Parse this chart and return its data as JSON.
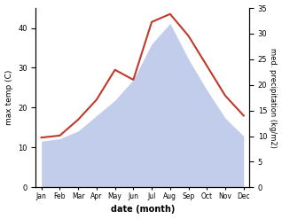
{
  "months": [
    "Jan",
    "Feb",
    "Mar",
    "Apr",
    "May",
    "Jun",
    "Jul",
    "Aug",
    "Sep",
    "Oct",
    "Nov",
    "Dec"
  ],
  "temp": [
    12.5,
    13.0,
    17.0,
    22.0,
    29.5,
    27.0,
    41.5,
    43.5,
    38.0,
    30.5,
    23.0,
    18.0
  ],
  "precip": [
    9.0,
    9.5,
    11.0,
    14.0,
    17.0,
    21.0,
    28.0,
    32.0,
    25.0,
    19.0,
    13.5,
    10.0
  ],
  "temp_color": "#c0392b",
  "precip_fill_color": "#b8c4e8",
  "ylabel_left": "max temp (C)",
  "ylabel_right": "med. precipitation (kg/m2)",
  "xlabel": "date (month)",
  "ylim_left": [
    0,
    45
  ],
  "ylim_right": [
    0,
    35
  ],
  "yticks_left": [
    0,
    10,
    20,
    30,
    40
  ],
  "yticks_right": [
    0,
    5,
    10,
    15,
    20,
    25,
    30,
    35
  ],
  "background_color": "#ffffff"
}
